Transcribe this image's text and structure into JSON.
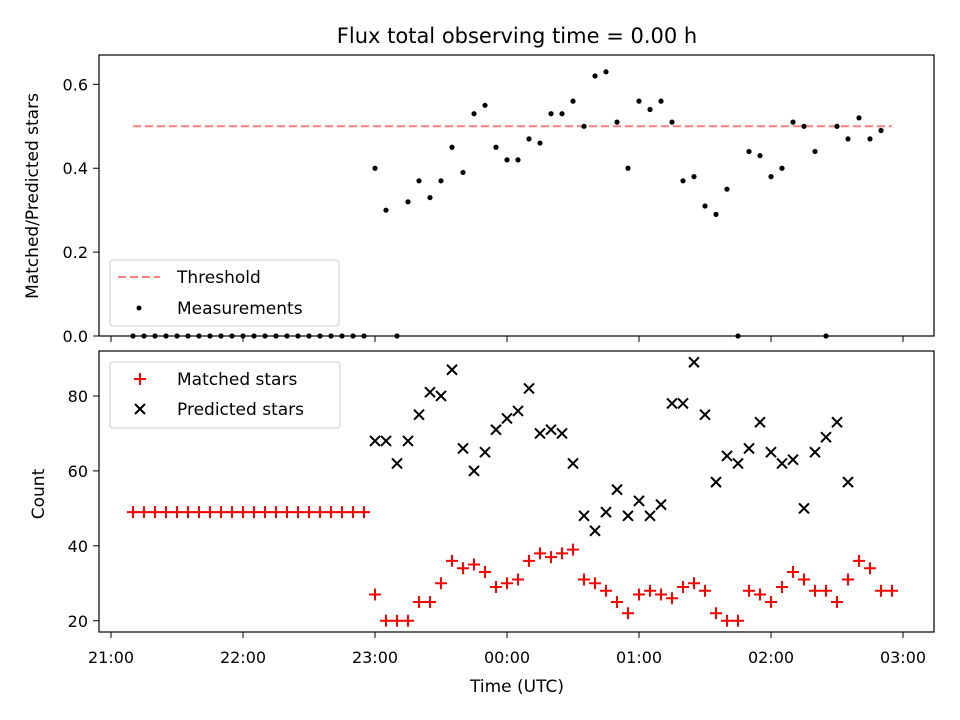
{
  "figure": {
    "title": "Flux total observing time = 0.00 h",
    "xlabel": "Time (UTC)"
  },
  "colors": {
    "threshold": "#ff7f7f",
    "measurements": "#000000",
    "matched": "#ff0000",
    "predicted": "#000000"
  },
  "chart_data": [
    {
      "type": "scatter",
      "ylabel": "Matched/Predicted stars",
      "ylim": [
        0,
        0.67
      ],
      "yticks": [
        "0.0",
        "0.2",
        "0.4",
        "0.6"
      ],
      "xlim": [
        "21:00",
        "03:00"
      ],
      "legend": {
        "position": "lower-left",
        "entries": [
          "Threshold",
          "Measurements"
        ]
      },
      "series": [
        {
          "name": "Threshold",
          "style": "dashed-line",
          "x": [
            "21:10",
            "02:55"
          ],
          "y": [
            0.5,
            0.5
          ]
        },
        {
          "name": "Measurements",
          "style": "dot",
          "x": [
            "21:10",
            "21:15",
            "21:20",
            "21:25",
            "21:30",
            "21:35",
            "21:40",
            "21:45",
            "21:50",
            "21:55",
            "22:00",
            "22:05",
            "22:10",
            "22:15",
            "22:20",
            "22:25",
            "22:30",
            "22:35",
            "22:40",
            "22:45",
            "22:50",
            "22:55",
            "23:00",
            "23:05",
            "23:10",
            "23:15",
            "23:20",
            "23:25",
            "23:30",
            "23:35",
            "23:40",
            "23:45",
            "23:50",
            "23:55",
            "00:00",
            "00:05",
            "00:10",
            "00:15",
            "00:20",
            "00:25",
            "00:30",
            "00:35",
            "00:40",
            "00:45",
            "00:50",
            "00:55",
            "01:00",
            "01:05",
            "01:10",
            "01:15",
            "01:20",
            "01:25",
            "01:30",
            "01:35",
            "01:40",
            "01:45",
            "01:50",
            "01:55",
            "02:00",
            "02:05",
            "02:10",
            "02:15",
            "02:20",
            "02:25",
            "02:30",
            "02:35",
            "02:40",
            "02:45",
            "02:50"
          ],
          "y": [
            0.0,
            0.0,
            0.0,
            0.0,
            0.0,
            0.0,
            0.0,
            0.0,
            0.0,
            0.0,
            0.0,
            0.0,
            0.0,
            0.0,
            0.0,
            0.0,
            0.0,
            0.0,
            0.0,
            0.0,
            0.0,
            0.0,
            0.4,
            0.3,
            0.0,
            0.32,
            0.37,
            0.33,
            0.37,
            0.45,
            0.39,
            0.53,
            0.55,
            0.45,
            0.42,
            0.42,
            0.47,
            0.46,
            0.53,
            0.53,
            0.56,
            0.5,
            0.62,
            0.63,
            0.51,
            0.4,
            0.56,
            0.54,
            0.56,
            0.51,
            0.37,
            0.38,
            0.31,
            0.29,
            0.35,
            0.0,
            0.44,
            0.43,
            0.38,
            0.4,
            0.51,
            0.5,
            0.44,
            0.0,
            0.5,
            0.47,
            0.52,
            0.47,
            0.49
          ]
        }
      ]
    },
    {
      "type": "scatter",
      "ylabel": "Count",
      "ylim": [
        17,
        92
      ],
      "yticks": [
        "20",
        "40",
        "60",
        "80"
      ],
      "xticks": [
        "21:00",
        "22:00",
        "23:00",
        "00:00",
        "01:00",
        "02:00",
        "03:00"
      ],
      "xlim": [
        "21:00",
        "03:00"
      ],
      "legend": {
        "position": "upper-left",
        "entries": [
          "Matched stars",
          "Predicted stars"
        ]
      },
      "series": [
        {
          "name": "Matched stars",
          "marker": "plus",
          "x": [
            "21:10",
            "21:15",
            "21:20",
            "21:25",
            "21:30",
            "21:35",
            "21:40",
            "21:45",
            "21:50",
            "21:55",
            "22:00",
            "22:05",
            "22:10",
            "22:15",
            "22:20",
            "22:25",
            "22:30",
            "22:35",
            "22:40",
            "22:45",
            "22:50",
            "22:55",
            "23:00",
            "23:05",
            "23:10",
            "23:15",
            "23:20",
            "23:25",
            "23:30",
            "23:35",
            "23:40",
            "23:45",
            "23:50",
            "23:55",
            "00:00",
            "00:05",
            "00:10",
            "00:15",
            "00:20",
            "00:25",
            "00:30",
            "00:35",
            "00:40",
            "00:45",
            "00:50",
            "00:55",
            "01:00",
            "01:05",
            "01:10",
            "01:15",
            "01:20",
            "01:25",
            "01:30",
            "01:35",
            "01:40",
            "01:45",
            "01:50",
            "01:55",
            "02:00",
            "02:05",
            "02:10",
            "02:15",
            "02:20",
            "02:25",
            "02:30",
            "02:35",
            "02:40",
            "02:45",
            "02:50",
            "02:55"
          ],
          "y": [
            49,
            49,
            49,
            49,
            49,
            49,
            49,
            49,
            49,
            49,
            49,
            49,
            49,
            49,
            49,
            49,
            49,
            49,
            49,
            49,
            49,
            49,
            27,
            20,
            20,
            20,
            25,
            25,
            30,
            36,
            34,
            35,
            33,
            29,
            30,
            31,
            36,
            38,
            37,
            38,
            39,
            31,
            30,
            28,
            25,
            22,
            27,
            28,
            27,
            26,
            29,
            30,
            28,
            22,
            20,
            20,
            28,
            27,
            25,
            29,
            33,
            31,
            28,
            28,
            25,
            31,
            36,
            34,
            28,
            28
          ]
        },
        {
          "name": "Predicted stars",
          "marker": "x",
          "x": [
            "23:00",
            "23:05",
            "23:10",
            "23:15",
            "23:20",
            "23:25",
            "23:30",
            "23:35",
            "23:40",
            "23:45",
            "23:50",
            "23:55",
            "00:00",
            "00:05",
            "00:10",
            "00:15",
            "00:20",
            "00:25",
            "00:30",
            "00:35",
            "00:40",
            "00:45",
            "00:50",
            "00:55",
            "01:00",
            "01:05",
            "01:10",
            "01:15",
            "01:20",
            "01:25",
            "01:30",
            "01:35",
            "01:40",
            "01:45",
            "01:50",
            "01:55",
            "02:00",
            "02:05",
            "02:10",
            "02:15",
            "02:20",
            "02:25",
            "02:30",
            "02:35",
            "02:40",
            "02:45",
            "02:50"
          ],
          "y": [
            68,
            68,
            62,
            68,
            75,
            81,
            80,
            87,
            66,
            60,
            65,
            71,
            74,
            76,
            82,
            70,
            71,
            70,
            62,
            48,
            44,
            49,
            55,
            48,
            52,
            48,
            51,
            78,
            78,
            89,
            75,
            57,
            64,
            62,
            66,
            73,
            65,
            62,
            63,
            50,
            65,
            69,
            73,
            57,
            null,
            null,
            null
          ]
        }
      ]
    }
  ]
}
